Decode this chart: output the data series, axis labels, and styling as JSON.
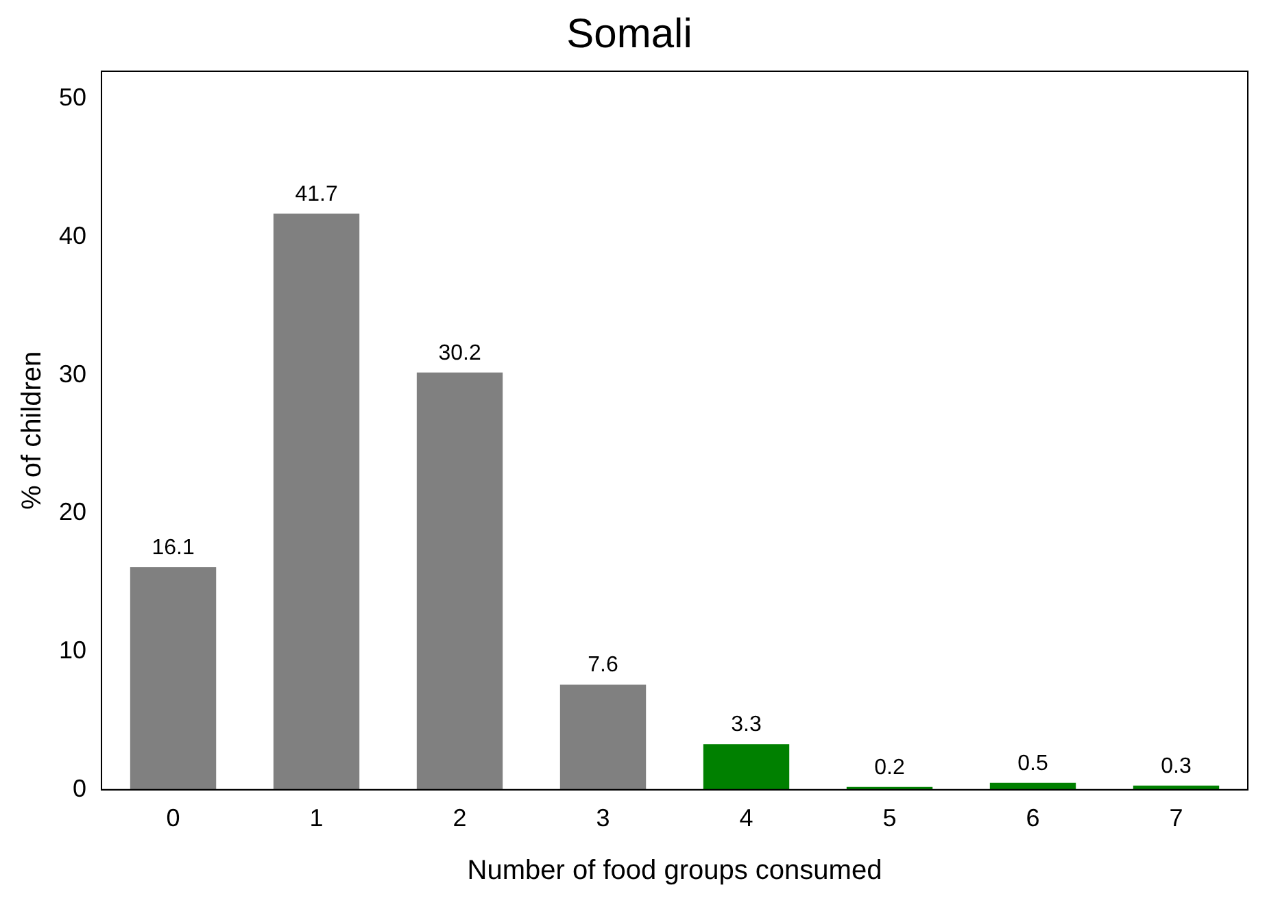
{
  "chart_data": {
    "type": "bar",
    "title": "Somali",
    "xlabel": "Number of food groups consumed",
    "ylabel": "% of children",
    "categories": [
      "0",
      "1",
      "2",
      "3",
      "4",
      "5",
      "6",
      "7"
    ],
    "values": [
      16.1,
      41.7,
      30.2,
      7.6,
      3.3,
      0.2,
      0.5,
      0.3
    ],
    "colors": [
      "#808080",
      "#808080",
      "#808080",
      "#808080",
      "#008000",
      "#008000",
      "#008000",
      "#008000"
    ],
    "ylim": [
      0,
      52
    ],
    "yticks": [
      0,
      10,
      20,
      30,
      40,
      50
    ],
    "grid": false,
    "legend": false,
    "data_labels": true
  }
}
